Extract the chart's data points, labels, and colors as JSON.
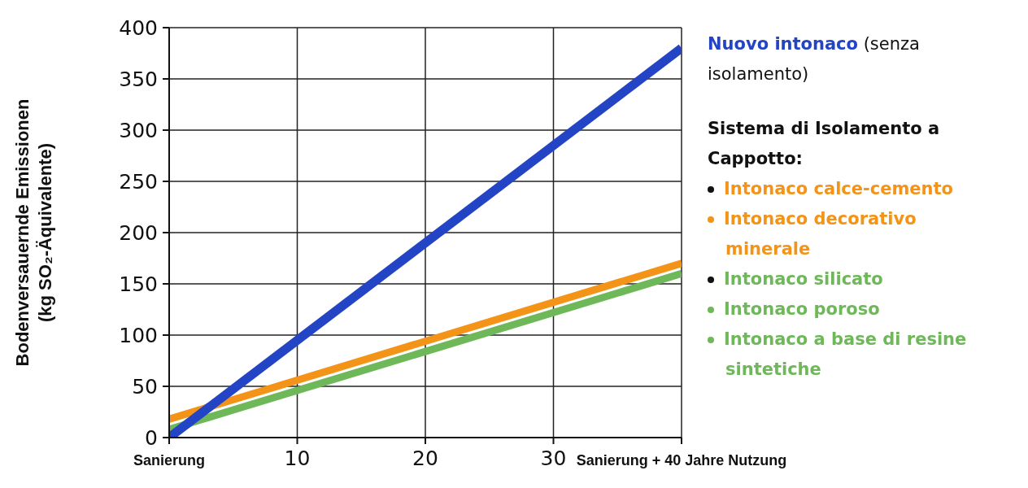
{
  "chart_data": {
    "type": "line",
    "ylabel": "Bodenversauernde Emissionen\n(kg SO₂-Äquivalente)",
    "legend_title": "Sistema di Isolamento a Cappotto:",
    "x": [
      0,
      40
    ],
    "xlim": [
      0,
      40
    ],
    "xticks": [
      {
        "value": 0,
        "label": "Sanierung"
      },
      10,
      20,
      30,
      {
        "value": 40,
        "label": "Sanierung + 40 Jahre Nutzung"
      }
    ],
    "ylim": [
      0,
      400
    ],
    "yticks": [
      0,
      50,
      100,
      150,
      200,
      250,
      300,
      350,
      400
    ],
    "grid": true,
    "legend": "right",
    "marker": "none",
    "line_style": "solid",
    "series": [
      {
        "name": "Nuovo intonaco",
        "color": "#2344c4",
        "values": [
          0,
          380
        ]
      },
      {
        "name": "Intonaco calce-cemento",
        "color": "#f39419",
        "values": [
          18,
          170
        ]
      },
      {
        "name": "Intonaco silicato",
        "color": "#6fb85a",
        "values": [
          8,
          160
        ]
      }
    ],
    "annotations": [
      "(senza isolamento)",
      "Intonaco decorativo minerale",
      "Intonaco poroso",
      "Intonaco a base di resine sintetiche"
    ]
  }
}
